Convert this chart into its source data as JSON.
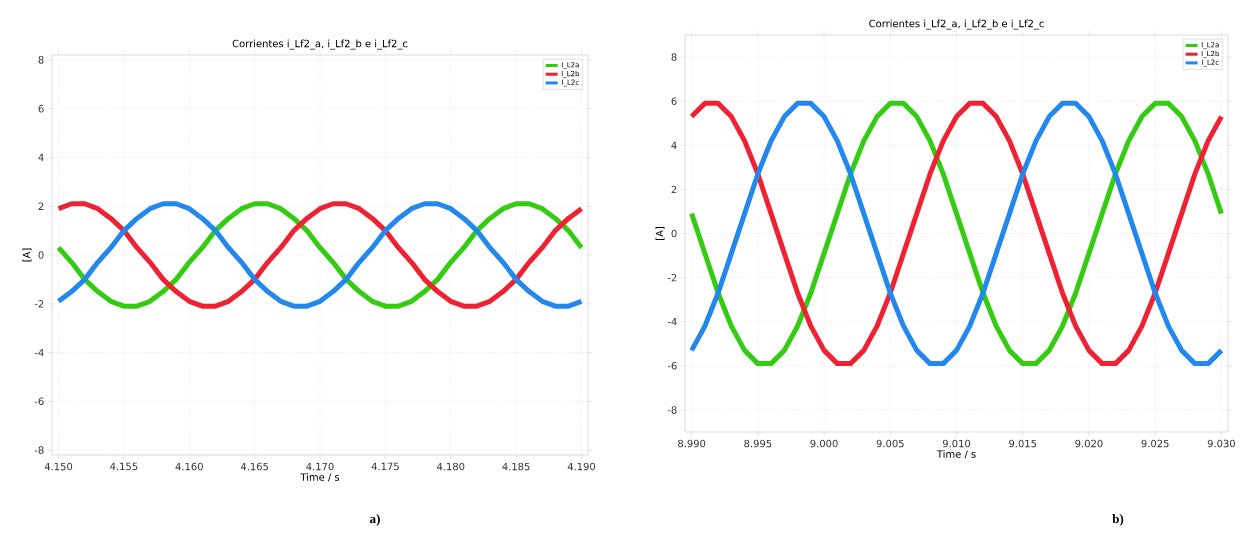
{
  "chart_data": [
    {
      "type": "line",
      "title": "Corrientes i_Lf2_a, i_Lf2_b e i_Lf2_c",
      "xlabel": "Time / s",
      "ylabel": "[A]",
      "annotations": [
        "a)"
      ],
      "x": [
        4.15,
        4.151,
        4.152,
        4.153,
        4.154,
        4.155,
        4.156,
        4.157,
        4.158,
        4.159,
        4.16,
        4.161,
        4.162,
        4.163,
        4.164,
        4.165,
        4.166,
        4.167,
        4.168,
        4.169,
        4.17,
        4.171,
        4.172,
        4.173,
        4.174,
        4.175,
        4.176,
        4.177,
        4.178,
        4.179,
        4.18,
        4.181,
        4.182,
        4.183,
        4.184,
        4.185,
        4.186,
        4.187,
        4.188,
        4.189,
        4.19
      ],
      "series": [
        {
          "name": "I_L2a",
          "color": "#33cc11",
          "values": [
            0.3,
            -0.3,
            -1.0,
            -1.5,
            -1.9,
            -2.1,
            -2.1,
            -1.9,
            -1.5,
            -1.0,
            -0.3,
            0.3,
            1.0,
            1.5,
            1.9,
            2.1,
            2.1,
            1.9,
            1.5,
            1.0,
            0.3,
            -0.3,
            -1.0,
            -1.5,
            -1.9,
            -2.1,
            -2.1,
            -1.9,
            -1.5,
            -1.0,
            -0.3,
            0.3,
            1.0,
            1.5,
            1.9,
            2.1,
            2.1,
            1.9,
            1.5,
            1.0,
            0.3
          ]
        },
        {
          "name": "I_L2b",
          "color": "#ee2233",
          "values": [
            1.9,
            2.1,
            2.1,
            1.9,
            1.5,
            1.0,
            0.3,
            -0.3,
            -1.0,
            -1.5,
            -1.9,
            -2.1,
            -2.1,
            -1.9,
            -1.5,
            -1.0,
            -0.3,
            0.3,
            1.0,
            1.5,
            1.9,
            2.1,
            2.1,
            1.9,
            1.5,
            1.0,
            0.3,
            -0.3,
            -1.0,
            -1.5,
            -1.9,
            -2.1,
            -2.1,
            -1.9,
            -1.5,
            -1.0,
            -0.3,
            0.3,
            1.0,
            1.5,
            1.9
          ]
        },
        {
          "name": "I_L2c",
          "color": "#2288ee",
          "values": [
            -1.9,
            -1.5,
            -1.0,
            -0.3,
            0.3,
            1.0,
            1.5,
            1.9,
            2.1,
            2.1,
            1.9,
            1.5,
            1.0,
            0.3,
            -0.3,
            -1.0,
            -1.5,
            -1.9,
            -2.1,
            -2.1,
            -1.9,
            -1.5,
            -1.0,
            -0.3,
            0.3,
            1.0,
            1.5,
            1.9,
            2.1,
            2.1,
            1.9,
            1.5,
            1.0,
            0.3,
            -0.3,
            -1.0,
            -1.5,
            -1.9,
            -2.1,
            -2.1,
            -1.9
          ]
        }
      ],
      "xlim": [
        4.1495,
        4.1905
      ],
      "ylim": [
        -8.2,
        8.2
      ],
      "xticks": [
        {
          "value": 4.15,
          "label": "4.150"
        },
        {
          "value": 4.155,
          "label": "4.155"
        },
        {
          "value": 4.16,
          "label": "4.160"
        },
        {
          "value": 4.165,
          "label": "4.165"
        },
        {
          "value": 4.17,
          "label": "4.170"
        },
        {
          "value": 4.175,
          "label": "4.175"
        },
        {
          "value": 4.18,
          "label": "4.180"
        },
        {
          "value": 4.185,
          "label": "4.185"
        },
        {
          "value": 4.19,
          "label": "4.190"
        }
      ],
      "yticks": [
        -8,
        -6,
        -4,
        -2,
        0,
        2,
        4,
        6,
        8
      ],
      "grid": true,
      "legend": "top right"
    },
    {
      "type": "line",
      "title": "Corrientes i_Lf2_a, i_Lf2_b e i_Lf2_c",
      "xlabel": "Time / s",
      "ylabel": "[A]",
      "annotations": [
        "b)"
      ],
      "x": [
        8.99,
        8.991,
        8.992,
        8.993,
        8.994,
        8.995,
        8.996,
        8.997,
        8.998,
        8.999,
        9.0,
        9.001,
        9.002,
        9.003,
        9.004,
        9.005,
        9.006,
        9.007,
        9.008,
        9.009,
        9.01,
        9.011,
        9.012,
        9.013,
        9.014,
        9.015,
        9.016,
        9.017,
        9.018,
        9.019,
        9.02,
        9.021,
        9.022,
        9.023,
        9.024,
        9.025,
        9.026,
        9.027,
        9.028,
        9.029,
        9.03
      ],
      "series": [
        {
          "name": "I_L2a",
          "color": "#33cc11",
          "values": [
            0.9,
            -0.9,
            -2.7,
            -4.2,
            -5.3,
            -5.9,
            -5.9,
            -5.3,
            -4.2,
            -2.7,
            -0.9,
            0.9,
            2.7,
            4.2,
            5.3,
            5.9,
            5.9,
            5.3,
            4.2,
            2.7,
            0.9,
            -0.9,
            -2.7,
            -4.2,
            -5.3,
            -5.9,
            -5.9,
            -5.3,
            -4.2,
            -2.7,
            -0.9,
            0.9,
            2.7,
            4.2,
            5.3,
            5.9,
            5.9,
            5.3,
            4.2,
            2.7,
            0.9
          ]
        },
        {
          "name": "I_L2b",
          "color": "#ee2233",
          "values": [
            5.3,
            5.9,
            5.9,
            5.3,
            4.2,
            2.7,
            0.9,
            -0.9,
            -2.7,
            -4.2,
            -5.3,
            -5.9,
            -5.9,
            -5.3,
            -4.2,
            -2.7,
            -0.9,
            0.9,
            2.7,
            4.2,
            5.3,
            5.9,
            5.9,
            5.3,
            4.2,
            2.7,
            0.9,
            -0.9,
            -2.7,
            -4.2,
            -5.3,
            -5.9,
            -5.9,
            -5.3,
            -4.2,
            -2.7,
            -0.9,
            0.9,
            2.7,
            4.2,
            5.3
          ]
        },
        {
          "name": "I_L2c",
          "color": "#2288ee",
          "values": [
            -5.3,
            -4.2,
            -2.7,
            -0.9,
            0.9,
            2.7,
            4.2,
            5.3,
            5.9,
            5.9,
            5.3,
            4.2,
            2.7,
            0.9,
            -0.9,
            -2.7,
            -4.2,
            -5.3,
            -5.9,
            -5.9,
            -5.3,
            -4.2,
            -2.7,
            -0.9,
            0.9,
            2.7,
            4.2,
            5.3,
            5.9,
            5.9,
            5.3,
            4.2,
            2.7,
            0.9,
            -0.9,
            -2.7,
            -4.2,
            -5.3,
            -5.9,
            -5.9,
            -5.3
          ]
        }
      ],
      "xlim": [
        8.9895,
        9.0305
      ],
      "ylim": [
        -9,
        9
      ],
      "xticks": [
        {
          "value": 8.99,
          "label": "8.990"
        },
        {
          "value": 8.995,
          "label": "8.995"
        },
        {
          "value": 9.0,
          "label": "9.000"
        },
        {
          "value": 9.005,
          "label": "9.005"
        },
        {
          "value": 9.01,
          "label": "9.010"
        },
        {
          "value": 9.015,
          "label": "9.015"
        },
        {
          "value": 9.02,
          "label": "9.020"
        },
        {
          "value": 9.025,
          "label": "9.025"
        },
        {
          "value": 9.03,
          "label": "9.030"
        }
      ],
      "yticks": [
        -8,
        -6,
        -4,
        -2,
        0,
        2,
        4,
        6,
        8
      ],
      "grid": true,
      "legend": "top right"
    }
  ]
}
